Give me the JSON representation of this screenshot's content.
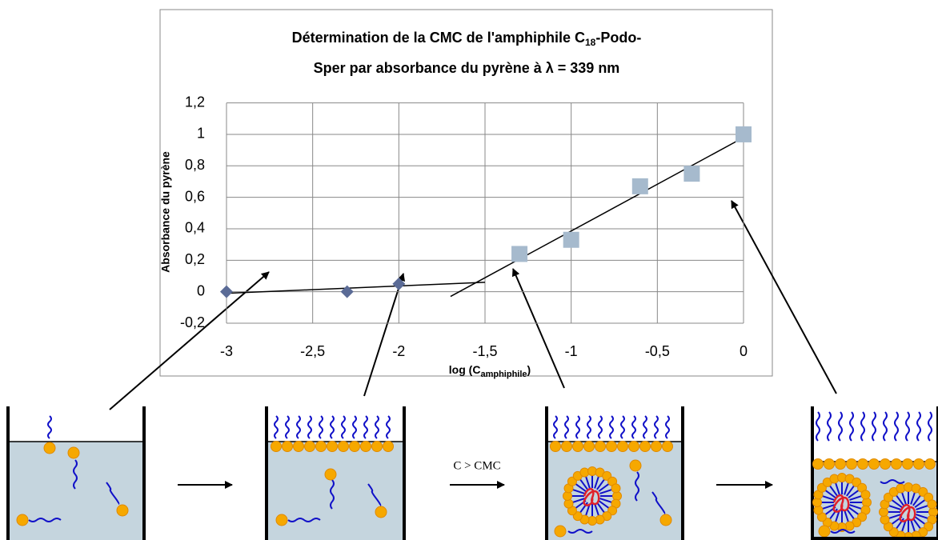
{
  "chart_data": {
    "type": "scatter",
    "title": {
      "text_1": "Détermination de la CMC de l'amphiphile C",
      "subscript": "18",
      "text_2": "-Podo-",
      "text_3": "Sper par absorbance du pyrène à λ = 339 nm"
    },
    "y_label": "Absorbance du pyrène",
    "x_label": {
      "text": "log (C",
      "subscript": "amphiphile",
      "text_end": ")"
    },
    "series": [
      {
        "marker": "diamond",
        "color": "#5b6b96",
        "x": [
          -3,
          -2.3,
          -2
        ],
        "values": [
          0,
          0,
          0.05
        ]
      },
      {
        "marker": "square",
        "color": "#a6bacd",
        "x": [
          -1.3,
          -1,
          -0.6,
          -0.3,
          0
        ],
        "values": [
          0.24,
          0.33,
          0.67,
          0.75,
          1
        ]
      }
    ],
    "trendlines": [
      {
        "color": "#000000",
        "x": [
          -3,
          -1.5
        ],
        "values": [
          -0.01,
          0.06
        ]
      },
      {
        "color": "#000000",
        "x": [
          -1.7,
          0
        ],
        "values": [
          -0.03,
          0.98
        ]
      }
    ],
    "xlim": [
      -3,
      0
    ],
    "ylim": [
      -0.2,
      1.2
    ],
    "xticks": [
      -3,
      {
        "value": -2.5,
        "label": "-2,5"
      },
      -2,
      {
        "value": -1.5,
        "label": "-1,5"
      },
      -1,
      {
        "value": -0.5,
        "label": "-0,5"
      },
      0
    ],
    "yticks": [
      {
        "value": -0.2,
        "label": "-0,2"
      },
      0,
      {
        "value": 0.2,
        "label": "0,2"
      },
      {
        "value": 0.4,
        "label": "0,4"
      },
      {
        "value": 0.6,
        "label": "0,6"
      },
      {
        "value": 0.8,
        "label": "0,8"
      },
      1,
      {
        "value": 1.2,
        "label": "1,2"
      }
    ],
    "grid": true
  },
  "diagram": {
    "arrow_label": "C > CMC"
  }
}
